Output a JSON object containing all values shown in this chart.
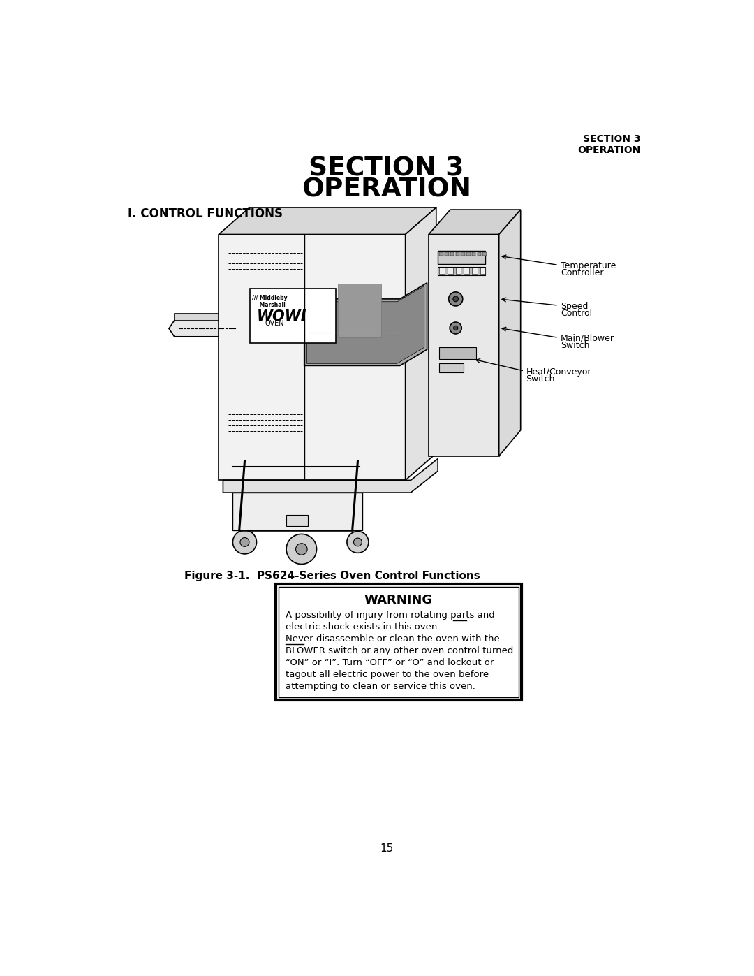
{
  "bg_color": "#ffffff",
  "header_right_line1": "SECTION 3",
  "header_right_line2": "OPERATION",
  "main_title_line1": "SECTION 3",
  "main_title_line2": "OPERATION",
  "section_heading": "I. CONTROL FUNCTIONS",
  "figure_caption": "Figure 3-1.  PS624-Series Oven Control Functions",
  "warning_title": "WARNING",
  "warning_lines": [
    "A possibility of injury from rotating parts and",
    "electric shock exists in this oven.",
    "Never disassemble or clean the oven with the",
    "BLOWER switch or any other oven control turned",
    "“ON” or “I”. Turn “OFF” or “O” and lockout or",
    "tagout all electric power to the oven before",
    "attempting to clean or service this oven."
  ],
  "page_number": "15",
  "label_temp_controller": [
    "Temperature",
    "Controller"
  ],
  "label_speed_control": [
    "Speed",
    "Control"
  ],
  "label_main_blower": [
    "Main/Blower",
    "Switch"
  ],
  "label_heat_conveyor": [
    "Heat/Conveyor",
    "Switch"
  ]
}
